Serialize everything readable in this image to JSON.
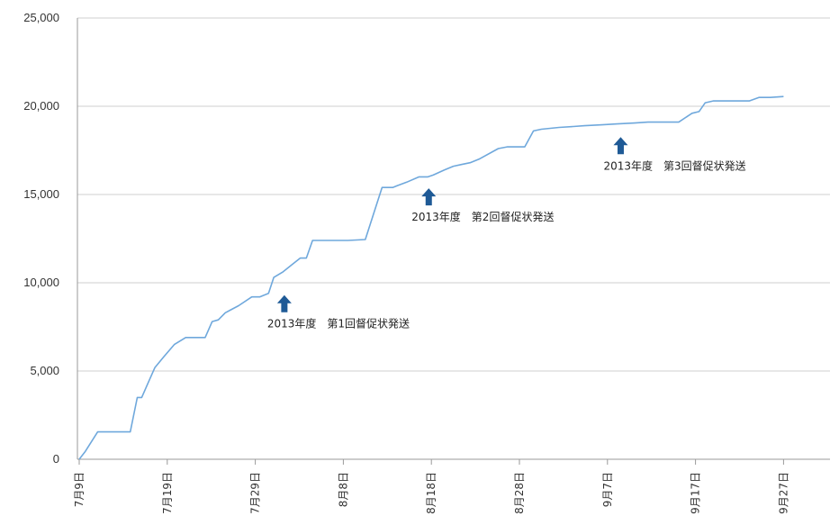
{
  "chart_data": {
    "type": "line",
    "ylim": [
      0,
      25000
    ],
    "grid": true,
    "y_ticks": [
      "0",
      "5,000",
      "10,000",
      "15,000",
      "20,000",
      "25,000"
    ],
    "y_tick_values": [
      0,
      5000,
      10000,
      15000,
      20000,
      25000
    ],
    "x_ticks": [
      "7月9日",
      "7月19日",
      "7月29日",
      "8月8日",
      "8月18日",
      "8月28日",
      "9月7日",
      "9月17日",
      "9月27日"
    ],
    "x_tick_days": [
      0,
      10,
      20,
      30,
      40,
      50,
      60,
      70,
      80
    ],
    "line_color": "#6fa8dc",
    "marker_color": "#1f5a96",
    "series": [
      {
        "x": [
          0,
          0.7,
          2.1,
          3.8,
          5.8,
          6.6,
          7.1,
          7.8,
          8.6,
          9.6,
          10.8,
          12.1,
          12.8,
          14.3,
          15.1,
          15.8,
          16.6,
          18.1,
          19.6,
          20.5,
          21.5,
          22.1,
          23.1,
          24.1,
          25.1,
          25.8,
          26.5,
          27.1,
          28.6,
          29.6,
          30.5,
          32.5,
          34.4,
          35.6,
          36.1,
          37.2,
          38.6,
          39.6,
          40.2,
          41.5,
          42.5,
          43.4,
          44.4,
          45.4,
          47.6,
          48.6,
          49.4,
          50.6,
          51.6,
          52.5,
          54.5,
          56.1,
          57.4,
          59.4,
          61.1,
          63.1,
          64.6,
          65.6,
          66.6,
          68.1,
          69.6,
          70.4,
          71.1,
          72.0,
          72.6,
          73.2,
          75.1,
          76.1,
          77.2,
          78.5,
          80.0
        ],
        "y": [
          0,
          450,
          1550,
          1550,
          1550,
          3500,
          3500,
          4300,
          5200,
          5800,
          6500,
          6900,
          6900,
          6900,
          7800,
          7900,
          8300,
          8700,
          9200,
          9200,
          9400,
          10300,
          10600,
          11000,
          11400,
          11400,
          12400,
          12400,
          12400,
          12400,
          12400,
          12450,
          15400,
          15400,
          15500,
          15700,
          16000,
          16000,
          16100,
          16400,
          16600,
          16700,
          16800,
          17000,
          17600,
          17700,
          17700,
          17700,
          18600,
          18700,
          18800,
          18850,
          18900,
          18950,
          19000,
          19050,
          19100,
          19100,
          19100,
          19100,
          19600,
          19700,
          20200,
          20300,
          20300,
          20300,
          20300,
          20300,
          20500,
          20500,
          20550
        ]
      }
    ],
    "annotations": [
      {
        "text": "2013年度　第1回督促状発送",
        "x": 23.3,
        "y": 9300
      },
      {
        "text": "2013年度　第2回督促状発送",
        "x": 39.7,
        "y": 15350
      },
      {
        "text": "2013年度　第3回督促状発送",
        "x": 61.5,
        "y": 18250
      }
    ]
  }
}
